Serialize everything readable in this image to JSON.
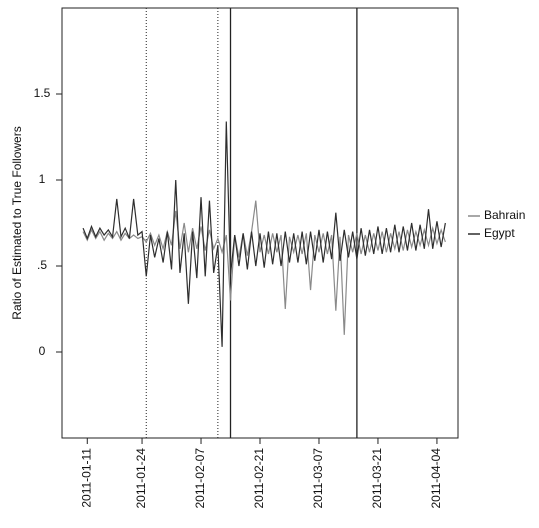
{
  "chart_data": {
    "type": "line",
    "ylabel": "Ratio of Estimated to True Followers",
    "x": [
      "2011-01-10",
      "2011-01-11",
      "2011-01-12",
      "2011-01-13",
      "2011-01-14",
      "2011-01-15",
      "2011-01-16",
      "2011-01-17",
      "2011-01-18",
      "2011-01-19",
      "2011-01-20",
      "2011-01-21",
      "2011-01-22",
      "2011-01-23",
      "2011-01-24",
      "2011-01-25",
      "2011-01-26",
      "2011-01-27",
      "2011-01-28",
      "2011-01-29",
      "2011-01-30",
      "2011-01-31",
      "2011-02-01",
      "2011-02-02",
      "2011-02-03",
      "2011-02-04",
      "2011-02-05",
      "2011-02-06",
      "2011-02-07",
      "2011-02-08",
      "2011-02-09",
      "2011-02-10",
      "2011-02-11",
      "2011-02-12",
      "2011-02-13",
      "2011-02-14",
      "2011-02-15",
      "2011-02-16",
      "2011-02-17",
      "2011-02-18",
      "2011-02-19",
      "2011-02-20",
      "2011-02-21",
      "2011-02-22",
      "2011-02-23",
      "2011-02-24",
      "2011-02-25",
      "2011-02-26",
      "2011-02-27",
      "2011-02-28",
      "2011-03-01",
      "2011-03-02",
      "2011-03-03",
      "2011-03-04",
      "2011-03-05",
      "2011-03-06",
      "2011-03-07",
      "2011-03-08",
      "2011-03-09",
      "2011-03-10",
      "2011-03-11",
      "2011-03-12",
      "2011-03-13",
      "2011-03-14",
      "2011-03-15",
      "2011-03-16",
      "2011-03-17",
      "2011-03-18",
      "2011-03-19",
      "2011-03-20",
      "2011-03-21",
      "2011-03-22",
      "2011-03-23",
      "2011-03-24",
      "2011-03-25",
      "2011-03-26",
      "2011-03-27",
      "2011-03-28",
      "2011-03-29",
      "2011-03-30",
      "2011-03-31",
      "2011-04-01",
      "2011-04-02",
      "2011-04-03",
      "2011-04-04",
      "2011-04-05",
      "2011-04-06"
    ],
    "series": [
      {
        "name": "Bahrain",
        "color": "#8a8a8a",
        "values": [
          0.7,
          0.65,
          0.71,
          0.66,
          0.7,
          0.65,
          0.69,
          0.66,
          0.7,
          0.65,
          0.69,
          0.66,
          0.68,
          0.66,
          0.67,
          0.64,
          0.69,
          0.62,
          0.68,
          0.6,
          0.7,
          0.62,
          0.82,
          0.6,
          0.75,
          0.58,
          0.72,
          0.6,
          0.73,
          0.59,
          0.71,
          0.6,
          0.66,
          0.58,
          0.68,
          0.3,
          0.68,
          0.55,
          0.69,
          0.56,
          0.7,
          0.88,
          0.58,
          0.68,
          0.57,
          0.69,
          0.58,
          0.68,
          0.25,
          0.67,
          0.58,
          0.68,
          0.57,
          0.69,
          0.36,
          0.68,
          0.58,
          0.69,
          0.57,
          0.68,
          0.24,
          0.67,
          0.1,
          0.68,
          0.58,
          0.69,
          0.57,
          0.68,
          0.58,
          0.69,
          0.59,
          0.7,
          0.58,
          0.69,
          0.6,
          0.7,
          0.59,
          0.71,
          0.61,
          0.7,
          0.62,
          0.71,
          0.62,
          0.72,
          0.63,
          0.71,
          0.64
        ]
      },
      {
        "name": "Egypt",
        "color": "#2e2e2e",
        "values": [
          0.72,
          0.66,
          0.73,
          0.67,
          0.72,
          0.68,
          0.71,
          0.67,
          0.89,
          0.67,
          0.72,
          0.66,
          0.89,
          0.68,
          0.7,
          0.44,
          0.68,
          0.55,
          0.66,
          0.52,
          0.7,
          0.48,
          1.0,
          0.46,
          0.69,
          0.28,
          0.7,
          0.43,
          0.9,
          0.44,
          0.88,
          0.46,
          0.62,
          0.03,
          1.34,
          0.45,
          0.68,
          0.5,
          0.69,
          0.48,
          0.7,
          0.5,
          0.69,
          0.49,
          0.7,
          0.51,
          0.69,
          0.5,
          0.7,
          0.52,
          0.69,
          0.52,
          0.7,
          0.51,
          0.7,
          0.53,
          0.71,
          0.52,
          0.7,
          0.54,
          0.81,
          0.53,
          0.71,
          0.55,
          0.7,
          0.54,
          0.72,
          0.56,
          0.71,
          0.57,
          0.73,
          0.57,
          0.72,
          0.58,
          0.74,
          0.58,
          0.73,
          0.59,
          0.75,
          0.59,
          0.74,
          0.6,
          0.83,
          0.6,
          0.76,
          0.61,
          0.75
        ]
      }
    ],
    "vlines": [
      {
        "x": "2011-01-25",
        "style": "dotted"
      },
      {
        "x": "2011-02-11",
        "style": "dotted"
      },
      {
        "x": "2011-02-14",
        "style": "solid"
      },
      {
        "x": "2011-03-16",
        "style": "solid"
      }
    ],
    "xlim": [
      "2011-01-05",
      "2011-04-09"
    ],
    "xticks": [
      "2011-01-11",
      "2011-01-24",
      "2011-02-07",
      "2011-02-21",
      "2011-03-07",
      "2011-03-21",
      "2011-04-04"
    ],
    "ylim": [
      -0.5,
      2.0
    ],
    "yticks": [
      0,
      {
        "value": 0.5,
        "label": ".5"
      },
      1,
      1.5
    ],
    "legend": "right"
  }
}
